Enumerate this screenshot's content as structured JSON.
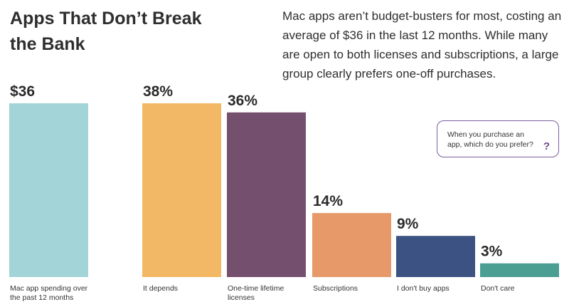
{
  "header": {
    "title": "Apps That Don’t Break the Bank",
    "subtitle": "Mac apps aren’t budget-busters for most, costing an average of $36 in the last 12 months. While many are open to both licenses and subscriptions, a large group clearly prefers one-off purchases."
  },
  "question": {
    "text": "When you purchase an app, which do you prefer?",
    "icon": "question-mark-icon",
    "icon_glyph": "?"
  },
  "colors": {
    "spending": "#a3d5d8",
    "it_depends": "#f2b866",
    "one_time": "#754f6e",
    "subscriptions": "#e8996a",
    "dont_buy": "#3b5282",
    "dont_care": "#4a9e92",
    "bubble_border": "#7a5ea0"
  },
  "chart_data": [
    {
      "type": "bar",
      "categories": [
        "Mac app spending over the past 12 months"
      ],
      "values": [
        36
      ],
      "value_labels": [
        "$36"
      ],
      "unit": "$",
      "ylim": [
        0,
        36
      ]
    },
    {
      "type": "bar",
      "categories": [
        "It depends",
        "One-time lifetime licenses",
        "Subscriptions",
        "I don't buy apps",
        "Don't care"
      ],
      "values": [
        38,
        36,
        14,
        9,
        3
      ],
      "value_labels": [
        "38%",
        "36%",
        "14%",
        "9%",
        "3%"
      ],
      "unit": "%",
      "ylim": [
        0,
        38
      ]
    }
  ]
}
